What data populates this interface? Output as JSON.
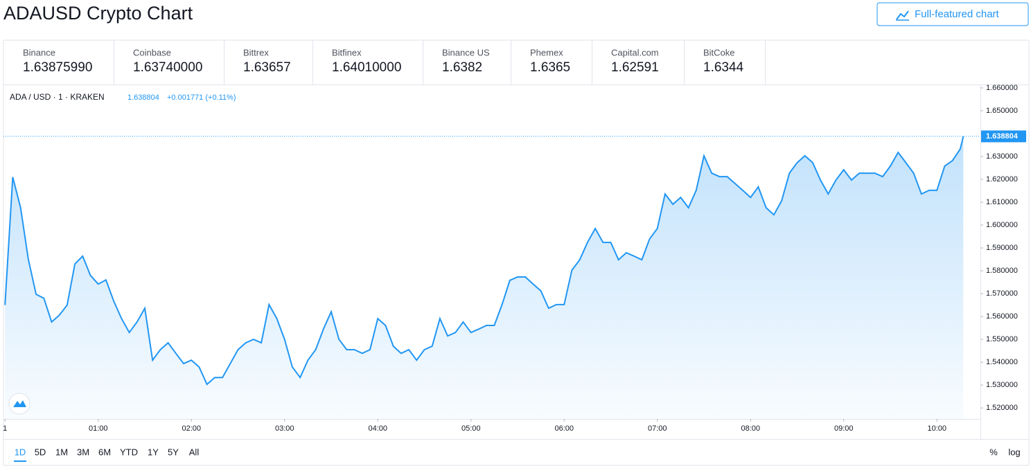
{
  "header": {
    "title": "ADAUSD Crypto Chart",
    "button": "Full-featured chart"
  },
  "exchanges": [
    {
      "name": "Binance",
      "price": "1.63875990"
    },
    {
      "name": "Coinbase",
      "price": "1.63740000"
    },
    {
      "name": "Bittrex",
      "price": "1.63657"
    },
    {
      "name": "Bitfinex",
      "price": "1.64010000"
    },
    {
      "name": "Binance US",
      "price": "1.6382"
    },
    {
      "name": "Phemex",
      "price": "1.6365"
    },
    {
      "name": "Capital.com",
      "price": "1.62591"
    },
    {
      "name": "BitCoke",
      "price": "1.6344"
    }
  ],
  "chart_data": {
    "type": "area",
    "symbol": "ADA / USD · 1 · KRAKEN",
    "last_price": 1.638804,
    "change": "+0.001771 (+0.11%)",
    "color": "#2196f3",
    "grid": false,
    "x": [
      0,
      5,
      10,
      15,
      20,
      25,
      30,
      35,
      40,
      45,
      50,
      55,
      60,
      65,
      70,
      75,
      80,
      85,
      90,
      95,
      100,
      105,
      110,
      115,
      120,
      125,
      130,
      135,
      140,
      145,
      150,
      155,
      160,
      165,
      170,
      175,
      180,
      185,
      190,
      195,
      200,
      205,
      210,
      215,
      220,
      225,
      230,
      235,
      240,
      245,
      250,
      255,
      260,
      265,
      270,
      275,
      280,
      285,
      290,
      295,
      300,
      305,
      310,
      315,
      320,
      325,
      330,
      335,
      340,
      345,
      350,
      355,
      360,
      365,
      370,
      375,
      380,
      385,
      390,
      395,
      400,
      405,
      410,
      415,
      420,
      425,
      430,
      435,
      440,
      445,
      450,
      455,
      460,
      465,
      470,
      475,
      480,
      485,
      490,
      495,
      500,
      505,
      510,
      515,
      520,
      525,
      530,
      535,
      540,
      545,
      550,
      555,
      560,
      565,
      570,
      575,
      580,
      585,
      590,
      595,
      600,
      605,
      610,
      615,
      617
    ],
    "values": [
      1.565,
      1.621,
      1.6076,
      1.585,
      1.5697,
      1.568,
      1.5576,
      1.5606,
      1.565,
      1.583,
      1.5864,
      1.578,
      1.5742,
      1.576,
      1.5667,
      1.5591,
      1.553,
      1.5576,
      1.5636,
      1.5409,
      1.5455,
      1.5485,
      1.5439,
      1.5394,
      1.5409,
      1.5379,
      1.5303,
      1.5333,
      1.5333,
      1.5394,
      1.5455,
      1.5485,
      1.55,
      1.5485,
      1.5652,
      1.5591,
      1.55,
      1.5379,
      1.5333,
      1.5409,
      1.5455,
      1.5545,
      1.5621,
      1.55,
      1.5455,
      1.5455,
      1.5439,
      1.5455,
      1.5591,
      1.5561,
      1.547,
      1.5439,
      1.5455,
      1.5409,
      1.5455,
      1.547,
      1.5591,
      1.5515,
      1.553,
      1.5576,
      1.553,
      1.5545,
      1.5561,
      1.5561,
      1.5652,
      1.5758,
      1.5773,
      1.5773,
      1.5742,
      1.5712,
      1.5636,
      1.5652,
      1.5652,
      1.5803,
      1.5848,
      1.5924,
      1.5985,
      1.5924,
      1.5924,
      1.5848,
      1.5879,
      1.5864,
      1.5848,
      1.5939,
      1.5985,
      1.6136,
      1.6091,
      1.6121,
      1.6076,
      1.6152,
      1.6303,
      1.6227,
      1.6212,
      1.6212,
      1.6182,
      1.6152,
      1.6121,
      1.6167,
      1.6076,
      1.6045,
      1.6106,
      1.6227,
      1.6273,
      1.6303,
      1.6273,
      1.6197,
      1.6136,
      1.6197,
      1.6242,
      1.6197,
      1.6227,
      1.6227,
      1.6227,
      1.6212,
      1.6258,
      1.6318,
      1.6273,
      1.6227,
      1.6136,
      1.6152,
      1.6152,
      1.6258,
      1.6282,
      1.6333,
      1.6388
    ],
    "xlim": [
      -1,
      628
    ],
    "xticks": [
      {
        "value": 0,
        "label": "1"
      },
      {
        "value": 60,
        "label": "01:00"
      },
      {
        "value": 120,
        "label": "02:00"
      },
      {
        "value": 180,
        "label": "03:00"
      },
      {
        "value": 240,
        "label": "04:00"
      },
      {
        "value": 300,
        "label": "05:00"
      },
      {
        "value": 360,
        "label": "06:00"
      },
      {
        "value": 420,
        "label": "07:00"
      },
      {
        "value": 480,
        "label": "08:00"
      },
      {
        "value": 540,
        "label": "09:00"
      },
      {
        "value": 600,
        "label": "10:00"
      }
    ],
    "ylim": [
      1.5152,
      1.6612
    ],
    "yticks": [
      {
        "value": 1.52,
        "label": "1.520000"
      },
      {
        "value": 1.53,
        "label": "1.530000"
      },
      {
        "value": 1.54,
        "label": "1.540000"
      },
      {
        "value": 1.55,
        "label": "1.550000"
      },
      {
        "value": 1.56,
        "label": "1.560000"
      },
      {
        "value": 1.57,
        "label": "1.570000"
      },
      {
        "value": 1.58,
        "label": "1.580000"
      },
      {
        "value": 1.59,
        "label": "1.590000"
      },
      {
        "value": 1.6,
        "label": "1.600000"
      },
      {
        "value": 1.61,
        "label": "1.610000"
      },
      {
        "value": 1.62,
        "label": "1.620000"
      },
      {
        "value": 1.63,
        "label": "1.630000"
      },
      {
        "value": 1.64,
        "label": "1.640000"
      },
      {
        "value": 1.65,
        "label": "1.650000"
      },
      {
        "value": 1.66,
        "label": "1.660000"
      }
    ]
  },
  "ranges": [
    "1D",
    "5D",
    "1M",
    "3M",
    "6M",
    "YTD",
    "1Y",
    "5Y",
    "All"
  ],
  "active_range": "1D",
  "scale_options": [
    "%",
    "log"
  ]
}
